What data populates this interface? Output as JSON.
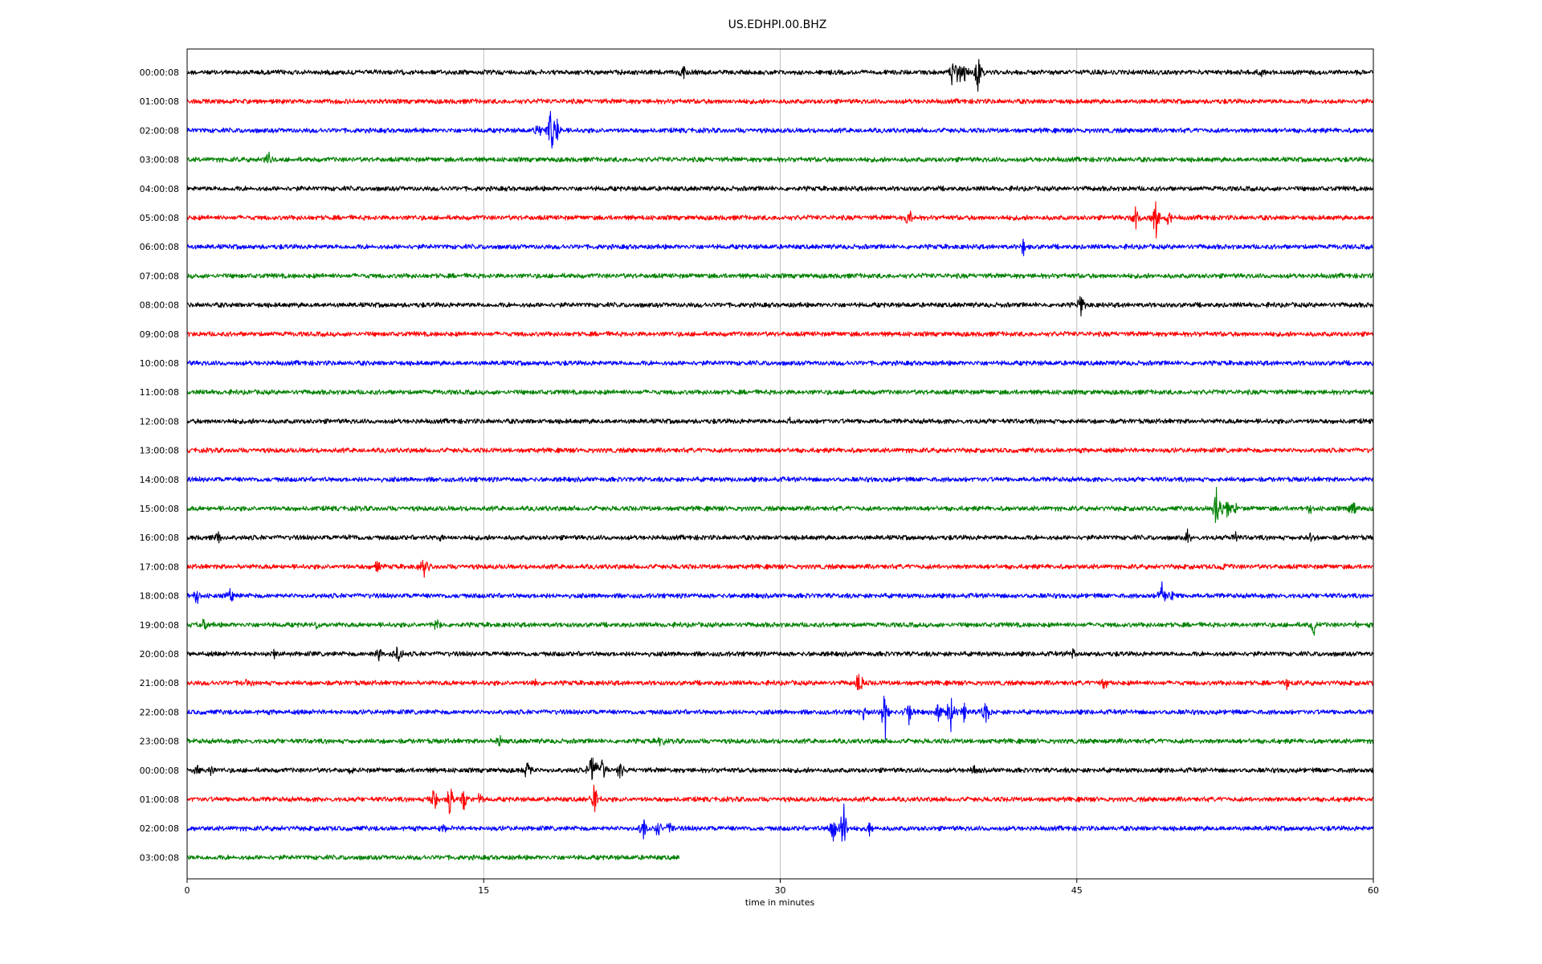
{
  "chart_data": {
    "type": "line",
    "title": "US.EDHPI.00.BHZ",
    "xlabel": "time in minutes",
    "ylabel": "",
    "xlim": [
      0,
      60
    ],
    "xticks": [
      0,
      15,
      30,
      45,
      60
    ],
    "grid": "vertical",
    "color_cycle": [
      "#000000",
      "#ff0000",
      "#0000ff",
      "#008000"
    ],
    "rows": [
      {
        "label": "00:00:08",
        "events": [
          [
            25.1,
            0.4
          ],
          [
            38.7,
            0.7
          ],
          [
            39.0,
            1.0
          ],
          [
            39.3,
            0.6
          ],
          [
            40.0,
            1.0
          ],
          [
            54.3,
            0.3
          ]
        ]
      },
      {
        "label": "01:00:08",
        "events": []
      },
      {
        "label": "02:00:08",
        "events": [
          [
            17.8,
            0.5
          ],
          [
            18.4,
            1.3
          ],
          [
            18.7,
            0.7
          ]
        ]
      },
      {
        "label": "03:00:08",
        "events": [
          [
            4.1,
            0.5
          ]
        ]
      },
      {
        "label": "04:00:08",
        "events": []
      },
      {
        "label": "05:00:08",
        "events": [
          [
            36.5,
            0.7
          ],
          [
            48.0,
            0.6
          ],
          [
            49.0,
            1.4
          ],
          [
            49.6,
            0.5
          ]
        ]
      },
      {
        "label": "06:00:08",
        "events": [
          [
            42.3,
            0.4
          ]
        ]
      },
      {
        "label": "07:00:08",
        "events": []
      },
      {
        "label": "08:00:08",
        "events": [
          [
            45.2,
            0.7
          ]
        ]
      },
      {
        "label": "09:00:08",
        "events": []
      },
      {
        "label": "10:00:08",
        "events": []
      },
      {
        "label": "11:00:08",
        "events": []
      },
      {
        "label": "12:00:08",
        "events": [
          [
            30.5,
            0.2
          ]
        ]
      },
      {
        "label": "13:00:08",
        "events": []
      },
      {
        "label": "14:00:08",
        "events": []
      },
      {
        "label": "15:00:08",
        "events": [
          [
            52.1,
            1.5
          ],
          [
            52.6,
            0.6
          ],
          [
            53.0,
            0.4
          ],
          [
            56.8,
            0.3
          ],
          [
            59.0,
            0.5
          ]
        ]
      },
      {
        "label": "16:00:08",
        "events": [
          [
            1.6,
            0.3
          ],
          [
            8.3,
            0.2
          ],
          [
            12.8,
            0.2
          ],
          [
            50.6,
            0.3
          ],
          [
            53.0,
            0.3
          ],
          [
            56.8,
            0.3
          ]
        ]
      },
      {
        "label": "17:00:08",
        "events": [
          [
            9.6,
            0.5
          ],
          [
            12.0,
            0.5
          ],
          [
            52.5,
            0.2
          ]
        ]
      },
      {
        "label": "18:00:08",
        "events": [
          [
            0.5,
            0.5
          ],
          [
            2.2,
            0.3
          ],
          [
            49.3,
            0.8
          ],
          [
            49.8,
            0.3
          ]
        ]
      },
      {
        "label": "19:00:08",
        "events": [
          [
            0.8,
            0.5
          ],
          [
            6.6,
            0.3
          ],
          [
            12.6,
            0.4
          ],
          [
            57.0,
            0.5
          ],
          [
            59.2,
            0.4
          ]
        ]
      },
      {
        "label": "20:00:08",
        "events": [
          [
            4.4,
            0.3
          ],
          [
            9.7,
            0.3
          ],
          [
            10.7,
            0.8
          ],
          [
            44.8,
            0.3
          ]
        ]
      },
      {
        "label": "21:00:08",
        "events": [
          [
            3.0,
            0.2
          ],
          [
            17.6,
            0.2
          ],
          [
            34.0,
            0.7
          ],
          [
            46.4,
            0.3
          ],
          [
            55.6,
            0.3
          ]
        ]
      },
      {
        "label": "22:00:08",
        "events": [
          [
            34.2,
            0.4
          ],
          [
            35.3,
            1.4
          ],
          [
            36.5,
            0.8
          ],
          [
            38.0,
            0.6
          ],
          [
            38.6,
            1.1
          ],
          [
            39.3,
            0.6
          ],
          [
            40.4,
            0.8
          ]
        ]
      },
      {
        "label": "23:00:08",
        "events": [
          [
            15.8,
            0.5
          ],
          [
            24.0,
            0.3
          ]
        ]
      },
      {
        "label": "00:00:08",
        "events": [
          [
            0.5,
            0.4
          ],
          [
            1.2,
            0.3
          ],
          [
            8.3,
            0.3
          ],
          [
            17.2,
            0.5
          ],
          [
            20.5,
            1.2
          ],
          [
            21.0,
            0.6
          ],
          [
            21.9,
            0.5
          ],
          [
            39.8,
            0.3
          ]
        ]
      },
      {
        "label": "01:00:08",
        "events": [
          [
            12.5,
            0.8
          ],
          [
            13.3,
            0.9
          ],
          [
            14.0,
            0.6
          ],
          [
            14.8,
            0.4
          ],
          [
            20.6,
            0.9
          ]
        ]
      },
      {
        "label": "02:00:08",
        "events": [
          [
            13.0,
            0.3
          ],
          [
            23.1,
            0.7
          ],
          [
            23.8,
            0.5
          ],
          [
            24.4,
            0.3
          ],
          [
            32.7,
            0.8
          ],
          [
            33.2,
            1.5
          ],
          [
            34.5,
            0.4
          ]
        ]
      },
      {
        "label": "03:00:08",
        "end": 24.9,
        "events": []
      }
    ]
  }
}
